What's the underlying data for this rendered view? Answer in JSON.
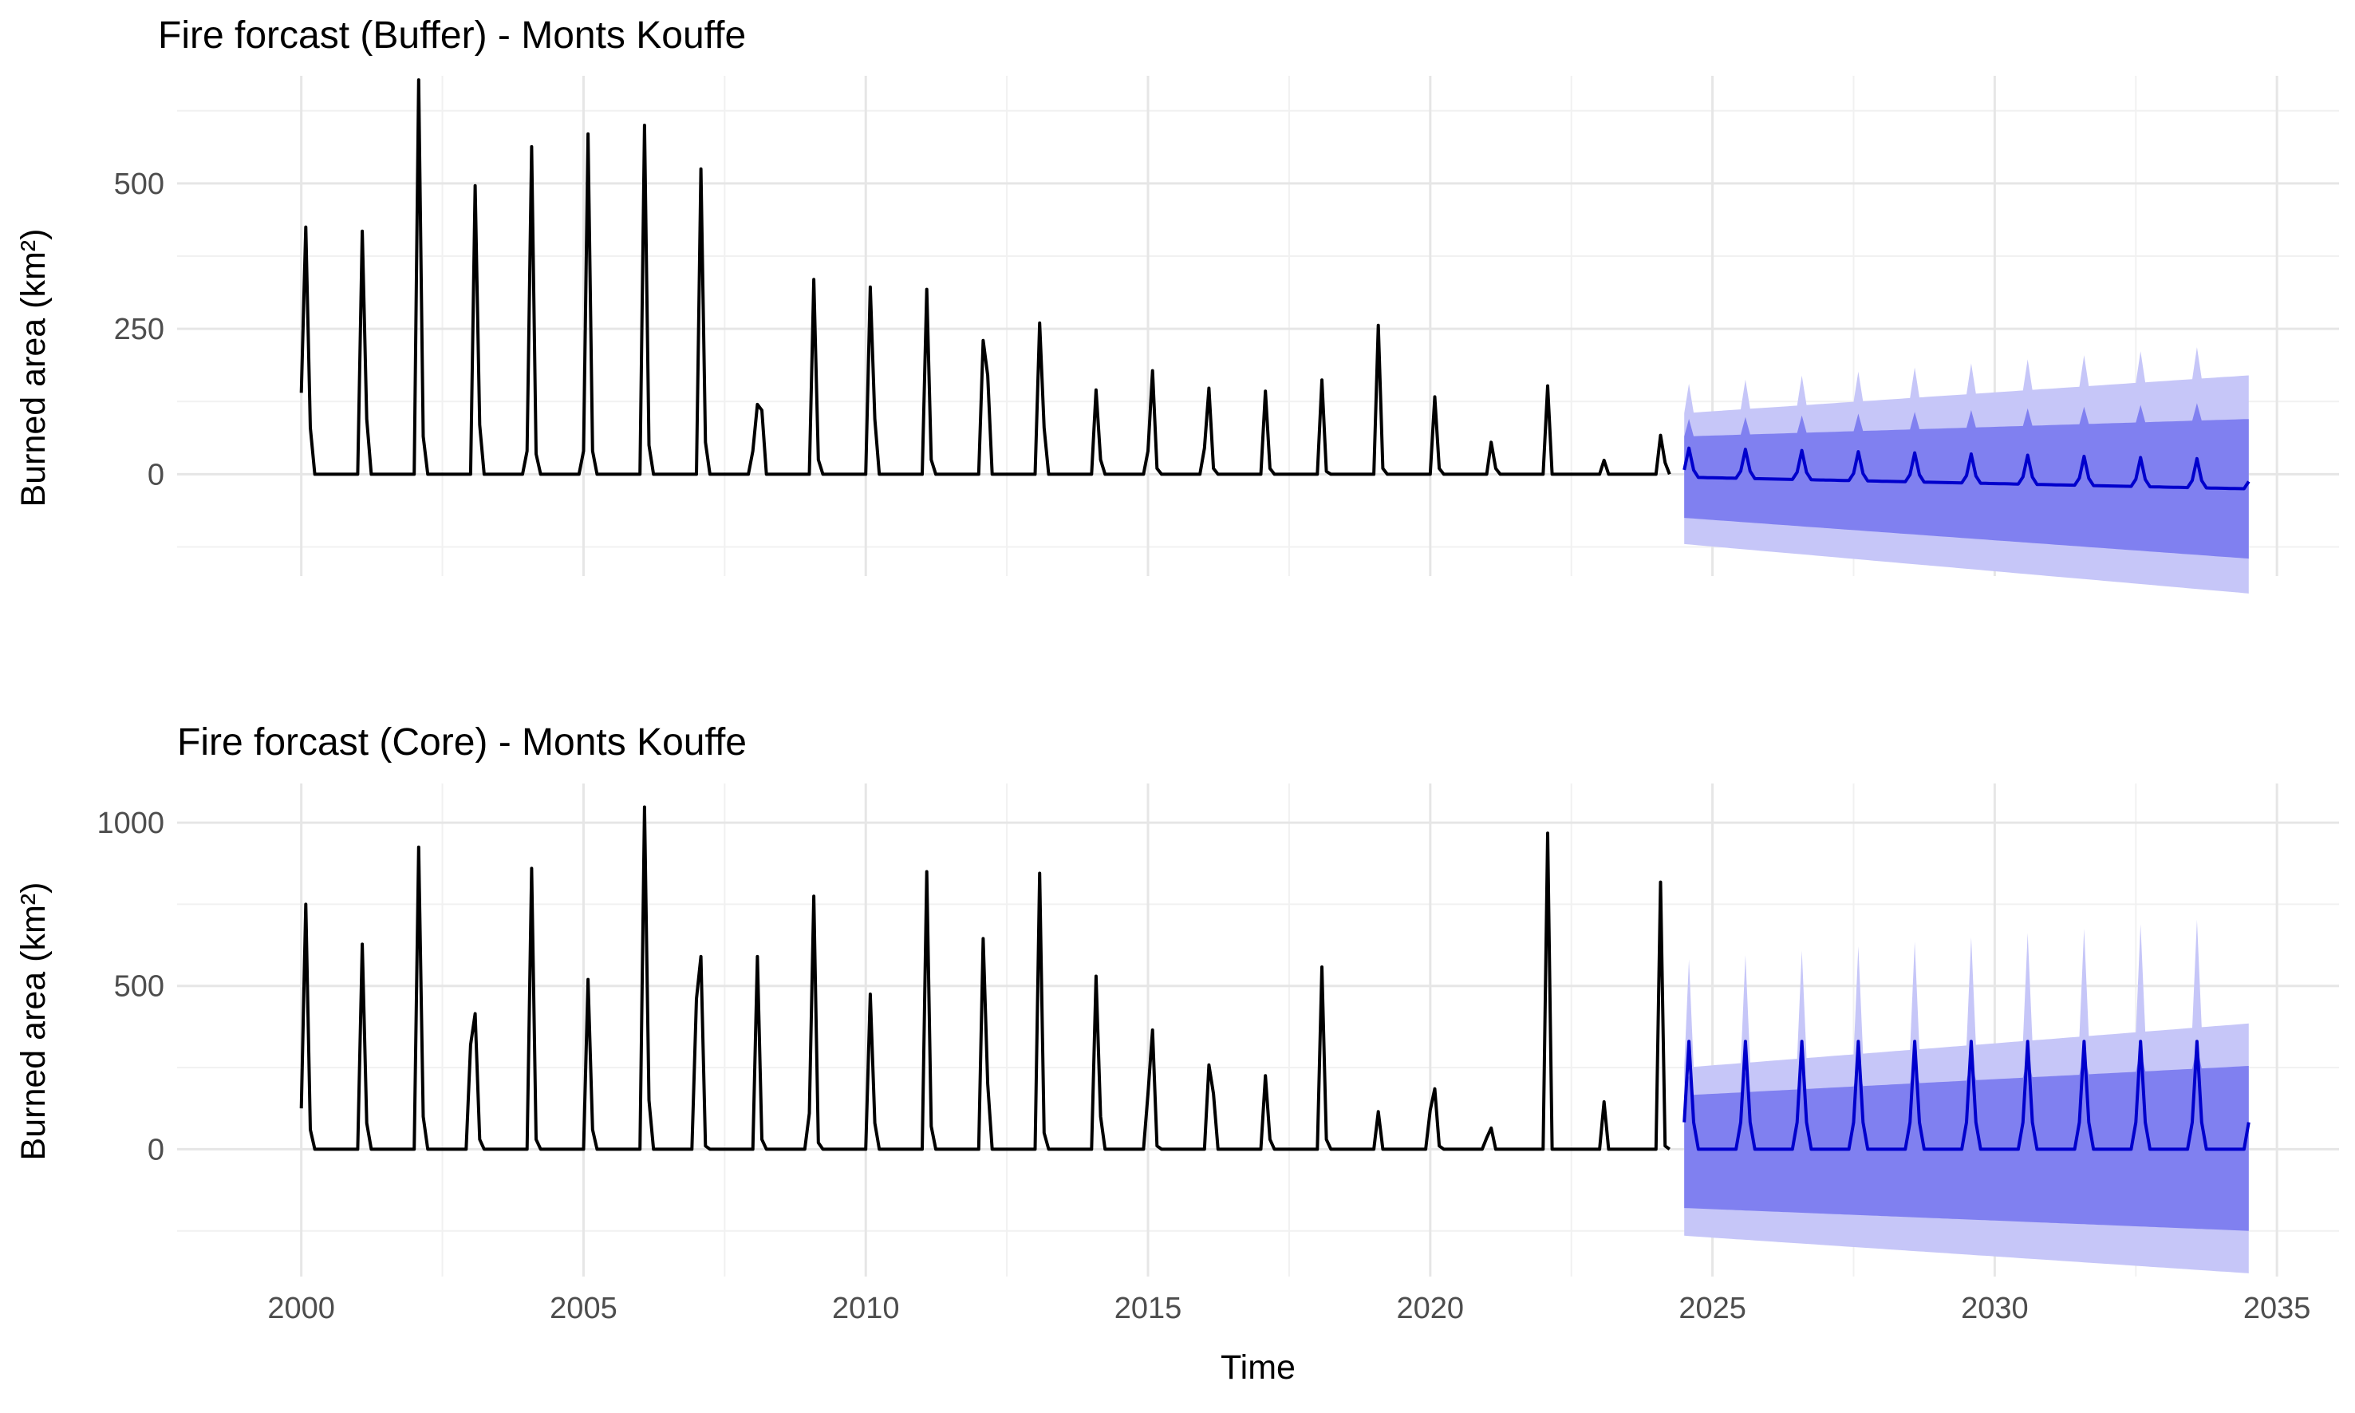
{
  "chart_data": [
    {
      "type": "line",
      "title": "Fire forcast (Buffer) - Monts Kouffe",
      "xlabel": "",
      "ylabel": "Burned area (km²)",
      "xlim": [
        1997.8,
        2036.1
      ],
      "ylim": [
        -175,
        685
      ],
      "x_ticks": [
        2000,
        2005,
        2010,
        2015,
        2020,
        2025,
        2030,
        2035
      ],
      "x_tick_labels": [],
      "y_ticks": [
        0,
        250,
        500
      ],
      "y_tick_labels": [
        "0",
        "250",
        "500"
      ],
      "grid": true,
      "legend": "none",
      "colors": {
        "observed": "#000000",
        "forecast": "#0000cc",
        "band80": "#8080f0",
        "band95": "#c6c6f8"
      },
      "observed": {
        "peaks": [
          [
            2000.08,
            140,
            425,
            80
          ],
          [
            2001.08,
            0,
            418,
            95
          ],
          [
            2002.08,
            0,
            678,
            65
          ],
          [
            2003.08,
            0,
            496,
            85
          ],
          [
            2004.08,
            40,
            563,
            35
          ],
          [
            2005.08,
            40,
            585,
            40
          ],
          [
            2006.08,
            0,
            600,
            50
          ],
          [
            2007.08,
            0,
            525,
            55
          ],
          [
            2008.08,
            40,
            120,
            110
          ],
          [
            2009.08,
            0,
            335,
            25
          ],
          [
            2010.08,
            0,
            322,
            95
          ],
          [
            2011.08,
            0,
            318,
            25
          ],
          [
            2012.08,
            0,
            230,
            170
          ],
          [
            2013.08,
            0,
            260,
            80
          ],
          [
            2014.08,
            0,
            145,
            25
          ],
          [
            2015.08,
            40,
            178,
            10
          ],
          [
            2016.08,
            45,
            148,
            10
          ],
          [
            2017.08,
            0,
            143,
            10
          ],
          [
            2018.08,
            0,
            162,
            5
          ],
          [
            2019.08,
            0,
            256,
            10
          ],
          [
            2020.08,
            0,
            133,
            10
          ],
          [
            2021.08,
            0,
            55,
            10
          ],
          [
            2022.08,
            0,
            152,
            0
          ],
          [
            2023.08,
            0,
            24,
            0
          ],
          [
            2024.08,
            0,
            67,
            20
          ]
        ]
      },
      "forecast": {
        "start": 2024.5,
        "end": 2034.5,
        "peak_month": 0.58,
        "point_base": [
          -5,
          -25
        ],
        "point_peak": [
          45,
          25
        ],
        "lo80": [
          -75,
          -145
        ],
        "hi80": [
          65,
          95
        ],
        "lo95": [
          -120,
          -205
        ],
        "hi95": [
          105,
          170
        ],
        "peak_extra80": [
          30,
          30
        ],
        "peak_extra95": [
          50,
          55
        ]
      }
    },
    {
      "type": "line",
      "title": "Fire forcast (Core) - Monts Kouffe",
      "xlabel": "Time",
      "ylabel": "Burned area (km²)",
      "xlim": [
        1997.8,
        2036.1
      ],
      "ylim": [
        -390,
        1120
      ],
      "x_ticks": [
        2000,
        2005,
        2010,
        2015,
        2020,
        2025,
        2030,
        2035
      ],
      "x_tick_labels": [
        "2000",
        "2005",
        "2010",
        "2015",
        "2020",
        "2025",
        "2030",
        "2035"
      ],
      "y_ticks": [
        0,
        500,
        1000
      ],
      "y_tick_labels": [
        "0",
        "500",
        "1000"
      ],
      "grid": true,
      "legend": "none",
      "colors": {
        "observed": "#000000",
        "forecast": "#0000cc",
        "band80": "#8080f0",
        "band95": "#c6c6f8"
      },
      "observed": {
        "peaks": [
          [
            2000.08,
            125,
            750,
            60
          ],
          [
            2001.08,
            0,
            628,
            80
          ],
          [
            2002.08,
            0,
            925,
            100
          ],
          [
            2003.08,
            320,
            415,
            30
          ],
          [
            2004.08,
            0,
            860,
            30
          ],
          [
            2005.08,
            0,
            520,
            60
          ],
          [
            2006.08,
            0,
            1048,
            150
          ],
          [
            2007.08,
            460,
            590,
            10
          ],
          [
            2008.08,
            0,
            590,
            30
          ],
          [
            2009.08,
            110,
            775,
            20
          ],
          [
            2010.08,
            0,
            475,
            80
          ],
          [
            2011.08,
            0,
            850,
            70
          ],
          [
            2012.08,
            0,
            645,
            200
          ],
          [
            2013.08,
            0,
            845,
            50
          ],
          [
            2014.08,
            0,
            530,
            100
          ],
          [
            2015.08,
            170,
            365,
            10
          ],
          [
            2016.08,
            0,
            258,
            170
          ],
          [
            2017.08,
            0,
            225,
            30
          ],
          [
            2018.08,
            0,
            558,
            30
          ],
          [
            2019.08,
            0,
            115,
            0
          ],
          [
            2020.08,
            120,
            185,
            10
          ],
          [
            2021.08,
            35,
            65,
            0
          ],
          [
            2022.08,
            0,
            968,
            0
          ],
          [
            2023.08,
            0,
            145,
            0
          ],
          [
            2024.08,
            0,
            818,
            10
          ]
        ]
      },
      "forecast": {
        "start": 2024.5,
        "end": 2034.5,
        "peak_month": 0.58,
        "point_base": [
          0,
          0
        ],
        "point_peak": [
          330,
          330
        ],
        "lo80": [
          -180,
          -250
        ],
        "hi80": [
          165,
          255
        ],
        "lo95": [
          -265,
          -380
        ],
        "hi95": [
          250,
          385
        ],
        "peak_extra80": [
          60,
          70
        ],
        "peak_extra95": [
          330,
          330
        ]
      }
    }
  ]
}
